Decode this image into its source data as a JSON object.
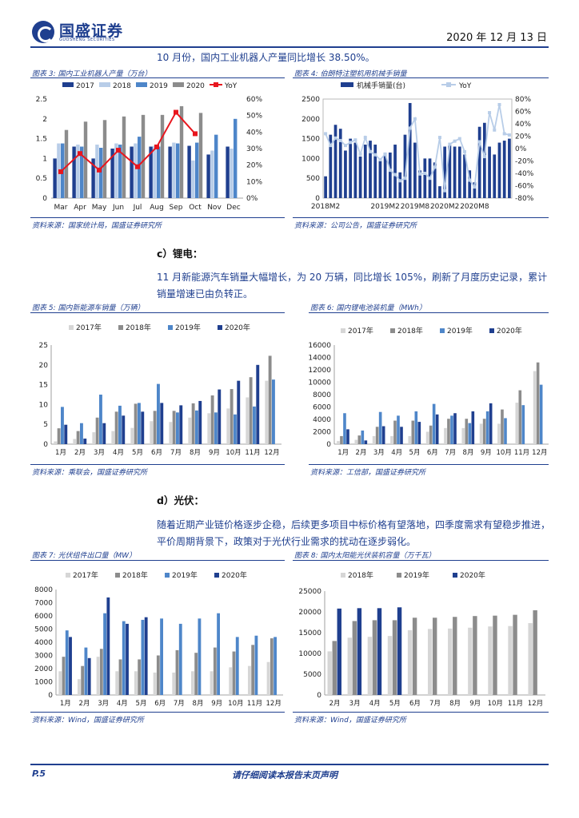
{
  "header": {
    "logo_text": "国盛证券",
    "logo_sub": "GUOSHENG SECURITIES",
    "date": "2020 年 12 月 13 日"
  },
  "para1": "10 月份，国内工业机器人产量同比增长 38.50%。",
  "charts": {
    "c3": {
      "caption": "图表 3: 国内工业机器人产量（万台）",
      "source": "资料来源：国家统计局，国盛证券研究所",
      "chart_data": {
        "type": "bar",
        "categories": [
          "Mar",
          "Apr",
          "May",
          "Jun",
          "Jul",
          "Aug",
          "Sep",
          "Oct",
          "Nov",
          "Dec"
        ],
        "series": [
          {
            "name": "2017",
            "values": [
              1.0,
              1.3,
              1.0,
              1.25,
              1.3,
              1.3,
              1.3,
              1.32,
              1.1,
              1.3
            ],
            "color": "#1f3f8f"
          },
          {
            "name": "2018",
            "values": [
              1.38,
              1.35,
              1.35,
              1.38,
              1.38,
              1.32,
              1.4,
              0.95,
              1.2,
              1.25
            ],
            "color": "#b8cde8"
          },
          {
            "name": "2019",
            "values": [
              1.38,
              1.3,
              1.27,
              1.35,
              1.55,
              1.3,
              1.38,
              1.4,
              1.6,
              2.0
            ],
            "color": "#4e86c9"
          },
          {
            "name": "2020",
            "values": [
              1.72,
              1.93,
              1.97,
              2.06,
              2.1,
              2.1,
              2.32,
              2.15,
              null,
              null
            ],
            "color": "#8c8c8c"
          }
        ],
        "line": {
          "name": "YoY",
          "values": [
            16,
            27,
            17,
            29,
            19,
            31,
            52,
            39
          ],
          "color": "#e8161e"
        },
        "ylim": [
          0,
          2.5
        ],
        "y2lim": [
          0,
          60
        ],
        "yticks": [
          "0",
          "0.5",
          "1",
          "1.5",
          "2",
          "2.5"
        ],
        "y2ticks": [
          "0%",
          "10%",
          "20%",
          "30%",
          "40%",
          "50%",
          "60%"
        ]
      }
    },
    "c4": {
      "caption": "图表 4: 伯朗特注塑机用机械手销量",
      "source": "资料来源：公司公告，国盛证券研究所",
      "chart_data": {
        "type": "bar",
        "series_names": [
          "机械手销量(台)",
          "YoY"
        ],
        "values": [
          550,
          1600,
          1850,
          1750,
          1200,
          1500,
          1400,
          1050,
          1350,
          1450,
          1350,
          1000,
          1150,
          1150,
          1350,
          650,
          1600,
          2400,
          1400,
          700,
          1000,
          1000,
          900,
          300,
          1300,
          1350,
          1300,
          1300,
          1100,
          700,
          400,
          1800,
          1900,
          1300,
          1100,
          1400,
          1450,
          1500
        ],
        "yoy": [
          24,
          5,
          17,
          13,
          5,
          10,
          14,
          -9,
          18,
          -5,
          -10,
          -18,
          -9,
          -35,
          -42,
          -52,
          -48,
          33,
          48,
          -41,
          -40,
          -48,
          -30,
          18,
          -68,
          7,
          12,
          16,
          -5,
          -51,
          -62,
          11,
          -13,
          58,
          30,
          71,
          24,
          22
        ],
        "xticks": [
          "2018M2",
          "2019M2",
          "2019M8",
          "2020M2",
          "2020M8"
        ],
        "yticks": [
          "0",
          "500",
          "1000",
          "1500",
          "2000",
          "2500"
        ],
        "y2ticks": [
          "-80%",
          "-60%",
          "-40%",
          "-20%",
          "0%",
          "20%",
          "40%",
          "60%",
          "80%"
        ],
        "ylim": [
          0,
          2500
        ],
        "y2lim": [
          -80,
          80
        ],
        "bar_color": "#1f3f8f",
        "line_color": "#b8cde8"
      }
    },
    "c5": {
      "caption": "图表 5: 国内新能源车销量（万辆）",
      "source": "资料来源：乘联会，国盛证券研究所",
      "chart_data": {
        "type": "bar",
        "categories": [
          "1月",
          "2月",
          "3月",
          "4月",
          "5月",
          "6月",
          "7月",
          "8月",
          "9月",
          "10月",
          "11月",
          "12月"
        ],
        "series": [
          {
            "name": "2017年",
            "values": [
              0.7,
              1.3,
              3.0,
              3.3,
              4.1,
              5.8,
              5.6,
              6.7,
              7.8,
              9.0,
              11.8,
              16.0
            ],
            "color": "#d6d6d6"
          },
          {
            "name": "2018年",
            "values": [
              4.0,
              3.3,
              6.7,
              8.2,
              10.2,
              8.4,
              8.4,
              10.3,
              12.3,
              13.9,
              16.9,
              22.3
            ],
            "color": "#8c8c8c"
          },
          {
            "name": "2019年",
            "values": [
              9.4,
              5.3,
              12.5,
              9.7,
              10.4,
              15.2,
              8.0,
              8.5,
              8.0,
              7.5,
              9.5,
              16.3
            ],
            "color": "#4e86c9"
          },
          {
            "name": "2020年",
            "values": [
              4.9,
              1.4,
              5.3,
              7.2,
              8.2,
              10.4,
              9.8,
              10.9,
              13.8,
              16.0,
              20.0,
              null
            ],
            "color": "#1f3f8f"
          }
        ],
        "ylim": [
          0,
          25
        ],
        "yticks": [
          "0",
          "5",
          "10",
          "15",
          "20",
          "25"
        ]
      }
    },
    "c6": {
      "caption": "图表 6: 国内锂电池装机量（MWh）",
      "source": "资料来源：工信部，国盛证券研究所",
      "chart_data": {
        "type": "bar",
        "categories": [
          "1月",
          "2月",
          "3月",
          "4月",
          "5月",
          "6月",
          "7月",
          "8月",
          "9月",
          "10月",
          "11月",
          "12月"
        ],
        "series": [
          {
            "name": "2017年",
            "values": [
              500,
              700,
              1300,
              1300,
              1300,
              2000,
              2600,
              2600,
              3300,
              3300,
              6700,
              11800
            ],
            "color": "#d6d6d6"
          },
          {
            "name": "2018年",
            "values": [
              1300,
              1400,
              2800,
              3800,
              3800,
              3000,
              4100,
              4100,
              4100,
              5600,
              8700,
              13200
            ],
            "color": "#8c8c8c"
          },
          {
            "name": "2019年",
            "values": [
              5000,
              2200,
              5200,
              4600,
              5300,
              6500,
              4600,
              3400,
              5300,
              4200,
              6300,
              9600
            ],
            "color": "#4e86c9"
          },
          {
            "name": "2020年",
            "values": [
              2400,
              600,
              2900,
              2800,
              3600,
              4800,
              5000,
              5300,
              6600,
              null,
              null,
              null
            ],
            "color": "#1f3f8f"
          }
        ],
        "ylim": [
          0,
          16000
        ],
        "yticks": [
          "0",
          "2000",
          "4000",
          "6000",
          "8000",
          "10000",
          "12000",
          "14000",
          "16000"
        ]
      }
    },
    "c7": {
      "caption": "图表 7: 光伏组件出口量（MW）",
      "source": "资料来源：Wind，国盛证券研究所",
      "chart_data": {
        "type": "bar",
        "categories": [
          "1月",
          "2月",
          "3月",
          "4月",
          "5月",
          "6月",
          "7月",
          "8月",
          "9月",
          "10月",
          "11月",
          "12月"
        ],
        "series": [
          {
            "name": "2017年",
            "values": [
              1800,
              1200,
              2900,
              1800,
              1800,
              1700,
              1700,
              1800,
              1800,
              2100,
              2200,
              2500
            ],
            "color": "#d6d6d6"
          },
          {
            "name": "2018年",
            "values": [
              2900,
              2200,
              3500,
              2700,
              2700,
              3000,
              3400,
              3200,
              3600,
              3300,
              3800,
              4300
            ],
            "color": "#8c8c8c"
          },
          {
            "name": "2019年",
            "values": [
              4900,
              3600,
              6200,
              5600,
              5700,
              5800,
              5400,
              5800,
              6200,
              4400,
              4500,
              4400
            ],
            "color": "#4e86c9"
          },
          {
            "name": "2020年",
            "values": [
              4400,
              2800,
              7400,
              5400,
              5900,
              null,
              null,
              null,
              null,
              null,
              null,
              null
            ],
            "color": "#1f3f8f"
          }
        ],
        "ylim": [
          0,
          8000
        ],
        "yticks": [
          "0",
          "1000",
          "2000",
          "3000",
          "4000",
          "5000",
          "6000",
          "7000",
          "8000"
        ]
      }
    },
    "c8": {
      "caption": "图表 8: 国内太阳能光伏装机容量（万千瓦）",
      "source": "资料来源：Wind，国盛证券研究所",
      "chart_data": {
        "type": "bar",
        "categories": [
          "2月",
          "3月",
          "4月",
          "5月",
          "6月",
          "7月",
          "8月",
          "9月",
          "10月",
          "11月",
          "12月"
        ],
        "series": [
          {
            "name": "2018年",
            "values": [
              10500,
              13800,
              14000,
              14200,
              15600,
              15900,
              16000,
              16200,
              16500,
              16600,
              17300
            ],
            "color": "#d6d6d6"
          },
          {
            "name": "2019年",
            "values": [
              13000,
              17800,
              18000,
              18000,
              18600,
              18600,
              18800,
              19000,
              19100,
              19300,
              20400
            ],
            "color": "#8c8c8c"
          },
          {
            "name": "2020年",
            "values": [
              20800,
              20900,
              20900,
              21100,
              null,
              null,
              null,
              null,
              null,
              null,
              null
            ],
            "color": "#1f3f8f"
          }
        ],
        "ylim": [
          0,
          25000
        ],
        "yticks": [
          "0",
          "5000",
          "10000",
          "15000",
          "20000",
          "25000"
        ]
      }
    }
  },
  "section_c": "c）锂电：",
  "para2": "11 月新能源汽车销量大幅增长，为 20 万辆，同比增长 105%，刷新了月度历史记录，累计销量增速已由负转正。",
  "section_d": "d）光伏：",
  "para3": "随着近期产业链价格逐步企稳，后续更多项目中标价格有望落地，四季度需求有望稳步推进，平价周期背景下，政策对于光伏行业需求的扰动在逐步弱化。",
  "footer": {
    "page": "P.5",
    "note": "请仔细阅读本报告末页声明"
  }
}
